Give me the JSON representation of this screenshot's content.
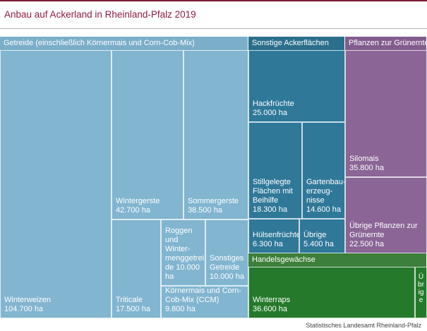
{
  "chart_data": {
    "type": "treemap",
    "title": "Anbau auf Ackerland in Rheinland-Pfalz 2019",
    "source": "Statistisches Landesamt Rheinland-Pfalz",
    "groups": [
      {
        "name": "Getreide (einschließlich Körnermais und Corn-Cob-Mix)",
        "header_color": "#7aaec9",
        "tile_color": "#81b5d0",
        "items": [
          {
            "name": "Winterweizen",
            "value": 104700,
            "label": "Winterweizen\n104.700 ha"
          },
          {
            "name": "Wintergerste",
            "value": 42700,
            "label": "Wintergerste\n42.700 ha"
          },
          {
            "name": "Sommergerste",
            "value": 38500,
            "label": "Sommergerste\n38.500 ha"
          },
          {
            "name": "Triticale",
            "value": 17500,
            "label": "Triticale\n17.500 ha"
          },
          {
            "name": "Roggen und Wintermenggetreide",
            "value": 10000,
            "label": "Roggen\nund Winter-\nmenggetrei\nde 10.000\nha"
          },
          {
            "name": "Sonstiges Getreide",
            "value": 10000,
            "label": "Sonstiges\nGetreide\n10.000 ha"
          },
          {
            "name": "Körnermais und Corn-Cob-Mix (CCM)",
            "value": 9800,
            "label": "Körnermais und Corn-\nCob-Mix (CCM)\n9.800 ha"
          }
        ]
      },
      {
        "name": "Sonstige Ackerflächen",
        "header_color": "#2b6f8c",
        "tile_color": "#2f7898",
        "items": [
          {
            "name": "Hackfrüchte",
            "value": 25000,
            "label": "Hackfrüchte\n25.000 ha"
          },
          {
            "name": "Stillgelegte Flächen mit Beihilfe",
            "value": 18300,
            "label": "Stillgelegte\nFlächen mit\nBeihilfe\n18.300 ha"
          },
          {
            "name": "Gartenbauerzeugnisse",
            "value": 14600,
            "label": "Gartenbau-\nerzeug-\nnisse\n14.600 ha"
          },
          {
            "name": "Hülsenfrüchte",
            "value": 6300,
            "label": "Hülsenfrüchte\n6.300 ha"
          },
          {
            "name": "Übrige",
            "value": 5400,
            "label": "Übrige\n5.400 ha"
          }
        ]
      },
      {
        "name": "Pflanzen zur Grünernte",
        "header_color": "#835d8e",
        "tile_color": "#8a6595",
        "items": [
          {
            "name": "Silomais",
            "value": 35800,
            "label": "Silomais\n35.800 ha"
          },
          {
            "name": "Übrige Pflanzen zur Grünernte",
            "value": 22500,
            "label": "Übrige Pflanzen zur\nGrünernte\n22.500 ha"
          }
        ]
      },
      {
        "name": "Handelsgewächse",
        "header_color": "#3c7f3a",
        "tile_color": "#247a2a",
        "items": [
          {
            "name": "Winterraps",
            "value": 36600,
            "label": "Winterraps\n36.600 ha"
          },
          {
            "name": "Übrige",
            "value": null,
            "label": "Übrige"
          }
        ]
      }
    ]
  }
}
